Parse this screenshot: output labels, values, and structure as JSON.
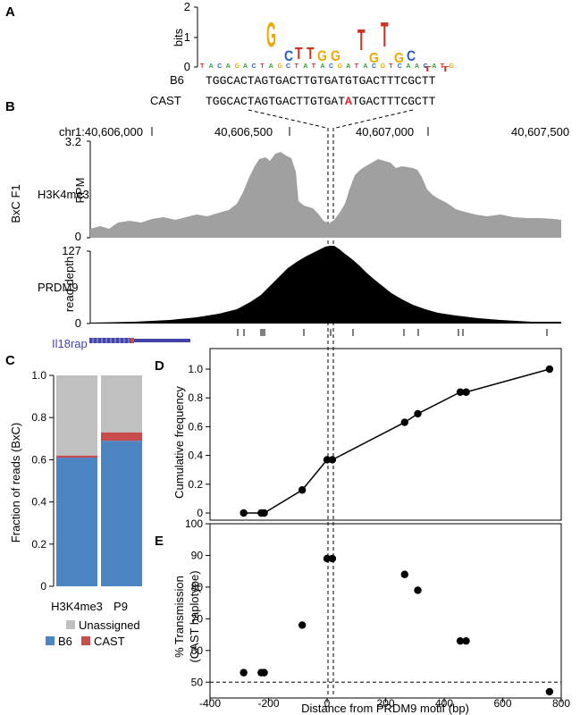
{
  "panels": {
    "A": "A",
    "B": "B",
    "C": "C",
    "D": "D",
    "E": "E"
  },
  "colors": {
    "b6": "#4d84c2",
    "cast": "#c84c4c",
    "unassigned": "#c0c0c0",
    "h3k4me3_track": "#a0a0a0",
    "prdm9_track": "#000000",
    "gene": "#4343a8",
    "highlight": "#e0242a"
  },
  "logo": {
    "ylabel": "bits",
    "yticks": [
      "2",
      "1",
      "0"
    ]
  },
  "sequences": {
    "b6_label": "B6",
    "cast_label": "CAST",
    "b6_seq": "TGGCACTAGTGACTTGTGATGTGACTTTCGCTT",
    "cast_pre": "TGGCACTAGTGACTTGTGAT",
    "cast_snp": "A",
    "cast_post": "TGACTTTCGCTT"
  },
  "tracks": {
    "coord_labels": [
      "chr1:40,606,000",
      "40,606,500",
      "40,607,000",
      "40,607,500"
    ],
    "h3k4me3": {
      "name": "H3K4me3",
      "unit": "RPM",
      "ymax": "3.2",
      "ymin": "0"
    },
    "prdm9": {
      "name": "PRDM9",
      "unit": "read depth",
      "ymax": "127",
      "ymin": "0"
    },
    "sample": "BxC F1",
    "gene": "Il18rap"
  },
  "chart_data": [
    {
      "type": "bar",
      "panel": "C",
      "categories": [
        "H3K4me3",
        "P9"
      ],
      "series": [
        {
          "name": "B6",
          "values": [
            0.61,
            0.69
          ]
        },
        {
          "name": "CAST",
          "values": [
            0.01,
            0.04
          ]
        },
        {
          "name": "Unassigned",
          "values": [
            0.38,
            0.27
          ]
        }
      ],
      "stacked": true,
      "ylabel": "Fraction of reads (BxC)",
      "ylim": [
        0,
        1.0
      ],
      "yticks": [
        "0",
        "0.2",
        "0.4",
        "0.6",
        "0.8",
        "1.0"
      ],
      "legend": [
        "Unassigned",
        "B6",
        "CAST"
      ]
    },
    {
      "type": "line",
      "panel": "D",
      "x": [
        -285,
        -225,
        -215,
        -85,
        0,
        18,
        265,
        310,
        455,
        475,
        760
      ],
      "y": [
        0,
        0,
        0,
        0.16,
        0.37,
        0.37,
        0.63,
        0.69,
        0.84,
        0.84,
        1.0
      ],
      "ylabel": "Cumulative frequency",
      "ylim": [
        0,
        1.0
      ],
      "yticks": [
        "0",
        "0.2",
        "0.4",
        "0.6",
        "0.8",
        "1.0"
      ],
      "xlim": [
        -400,
        800
      ]
    },
    {
      "type": "scatter",
      "panel": "E",
      "x": [
        -285,
        -225,
        -215,
        -85,
        0,
        18,
        265,
        310,
        455,
        475,
        760
      ],
      "y": [
        53,
        53,
        53,
        68,
        89,
        89,
        84,
        79,
        63,
        63,
        47
      ],
      "ylabel": "% Transmission",
      "ylabel2": "(CAST haplotype)",
      "ylim": [
        45,
        100
      ],
      "yticks": [
        "50",
        "60",
        "70",
        "80",
        "90",
        "100"
      ],
      "xlabel": "Distance from PRDM9 motif (bp)",
      "xticks": [
        "-400",
        "-200",
        "0",
        "200",
        "400",
        "600",
        "800"
      ],
      "xlim": [
        -400,
        800
      ],
      "reference_y": 50
    }
  ]
}
